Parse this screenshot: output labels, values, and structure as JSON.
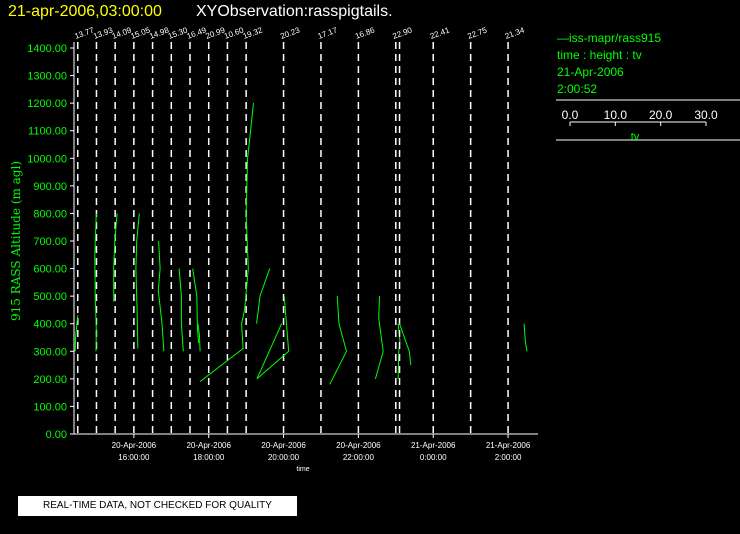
{
  "header": {
    "date": "21-apr-2006,03:00:00",
    "title": "XYObservation:rasspigtails."
  },
  "legend": {
    "line1": "iss-mapr/rass915",
    "line2": "time : height : tv",
    "line3": "21-Apr-2006",
    "line4": "2:00:52",
    "scale_ticks": [
      "0.0",
      "10.0",
      "20.0",
      "30.0"
    ],
    "scale_label": "tv"
  },
  "footer": {
    "notice": "REAL-TIME DATA, NOT CHECKED FOR QUALITY"
  },
  "colors": {
    "trace": "#00ff00",
    "axes": "#ffffff",
    "title_date": "#ffff00",
    "background": "#000000"
  },
  "chart_data": {
    "type": "line",
    "ylabel": "915 RASS Altitude (m agl)",
    "xlabel": "time",
    "ylim": [
      0,
      1400
    ],
    "xlim_hours": [
      14.4,
      26.8
    ],
    "yticks": [
      "0.00",
      "100.00",
      "200.00",
      "300.00",
      "400.00",
      "500.00",
      "600.00",
      "700.00",
      "800.00",
      "900.00",
      "1000.00",
      "1100.00",
      "1200.00",
      "1300.00",
      "1400.00"
    ],
    "xticks": [
      {
        "hour": 16,
        "date": "20-Apr-2006",
        "time": "16:00:00"
      },
      {
        "hour": 18,
        "date": "20-Apr-2006",
        "time": "18:00:00"
      },
      {
        "hour": 20,
        "date": "20-Apr-2006",
        "time": "20:00:00"
      },
      {
        "hour": 22,
        "date": "20-Apr-2006",
        "time": "22:00:00"
      },
      {
        "hour": 24,
        "date": "21-Apr-2006",
        "time": "0:00:00"
      },
      {
        "hour": 26,
        "date": "21-Apr-2006",
        "time": "2:00:00"
      }
    ],
    "tv_scale_per_hour": 0.1,
    "profiles": [
      {
        "hour": 14.5,
        "label": "13.77",
        "points": [
          [
            13.77,
            430
          ],
          [
            13.4,
            380
          ],
          [
            13.2,
            350
          ],
          [
            13.1,
            300
          ]
        ]
      },
      {
        "hour": 15.0,
        "label": "13.93",
        "points": [
          [
            13.9,
            800
          ],
          [
            13.5,
            650
          ],
          [
            13.6,
            500
          ],
          [
            13.9,
            380
          ],
          [
            13.8,
            300
          ]
        ]
      },
      {
        "hour": 15.5,
        "label": "14.09",
        "points": [
          [
            14.6,
            800
          ],
          [
            14.0,
            700
          ],
          [
            13.7,
            600
          ],
          [
            13.7,
            480
          ]
        ]
      },
      {
        "hour": 16.0,
        "label": "15.05",
        "points": [
          [
            16.5,
            800
          ],
          [
            15.8,
            700
          ],
          [
            15.6,
            600
          ],
          [
            15.9,
            450
          ],
          [
            16.1,
            310
          ]
        ]
      },
      {
        "hour": 16.5,
        "label": "14.98",
        "points": [
          [
            16.6,
            700
          ],
          [
            17.0,
            600
          ],
          [
            16.5,
            520
          ],
          [
            17.5,
            400
          ],
          [
            18.0,
            300
          ]
        ]
      },
      {
        "hour": 17.0,
        "label": "15.30",
        "points": [
          [
            17.4,
            600
          ],
          [
            18.0,
            500
          ],
          [
            18.0,
            400
          ],
          [
            18.5,
            300
          ]
        ]
      },
      {
        "hour": 17.5,
        "label": "16.49",
        "points": [
          [
            17.2,
            600
          ],
          [
            18.3,
            500
          ],
          [
            18.5,
            380
          ],
          [
            18.8,
            330
          ]
        ]
      },
      {
        "hour": 18.0,
        "label": "20.99",
        "points": [
          [
            18.1,
            400
          ],
          [
            18.5,
            360
          ],
          [
            18.7,
            300
          ]
        ]
      },
      {
        "hour": 18.5,
        "label": "10.60",
        "points": [
          [
            21.9,
            600
          ],
          [
            19.3,
            500
          ],
          [
            18.4,
            400
          ]
        ]
      },
      {
        "hour": 19.0,
        "label": "19.32",
        "points": [
          [
            21.3,
            1200
          ],
          [
            19.7,
            1000
          ],
          [
            19.3,
            800
          ],
          [
            19.9,
            600
          ],
          [
            18.9,
            450
          ],
          [
            18.1,
            400
          ],
          [
            18.5,
            310
          ],
          [
            7.0,
            190
          ]
        ]
      },
      {
        "hour": 20.0,
        "label": "20.23",
        "points": [
          [
            20.4,
            500
          ],
          [
            21.6,
            300
          ],
          [
            13.1,
            200
          ],
          [
            19.7,
            400
          ]
        ]
      },
      {
        "hour": 21.0,
        "label": "17.17",
        "points": [
          [
            21.5,
            500
          ],
          [
            22.0,
            400
          ],
          [
            24.0,
            300
          ],
          [
            19.5,
            180
          ]
        ]
      },
      {
        "hour": 22.0,
        "label": "16.86",
        "points": [
          [
            22.5,
            500
          ],
          [
            22.3,
            420
          ],
          [
            23.5,
            300
          ],
          [
            21.4,
            200
          ]
        ]
      },
      {
        "hour": 23.0,
        "label": "22.90",
        "points": [
          [
            23.5,
            400
          ],
          [
            24.0,
            340
          ],
          [
            23.7,
            300
          ],
          [
            23.5,
            200
          ]
        ]
      },
      {
        "hour": 23.1,
        "label": "",
        "points": [
          [
            21.1,
            400
          ],
          [
            23.7,
            300
          ],
          [
            24.1,
            250
          ]
        ]
      },
      {
        "hour": 26.0,
        "label": "21.34",
        "points": [
          [
            25.6,
            400
          ],
          [
            26.0,
            330
          ],
          [
            26.4,
            300
          ]
        ]
      }
    ],
    "extra_marker_lines": [
      {
        "hour": 24.0,
        "label": "22.41"
      },
      {
        "hour": 25.0,
        "label": "22.75"
      }
    ]
  }
}
